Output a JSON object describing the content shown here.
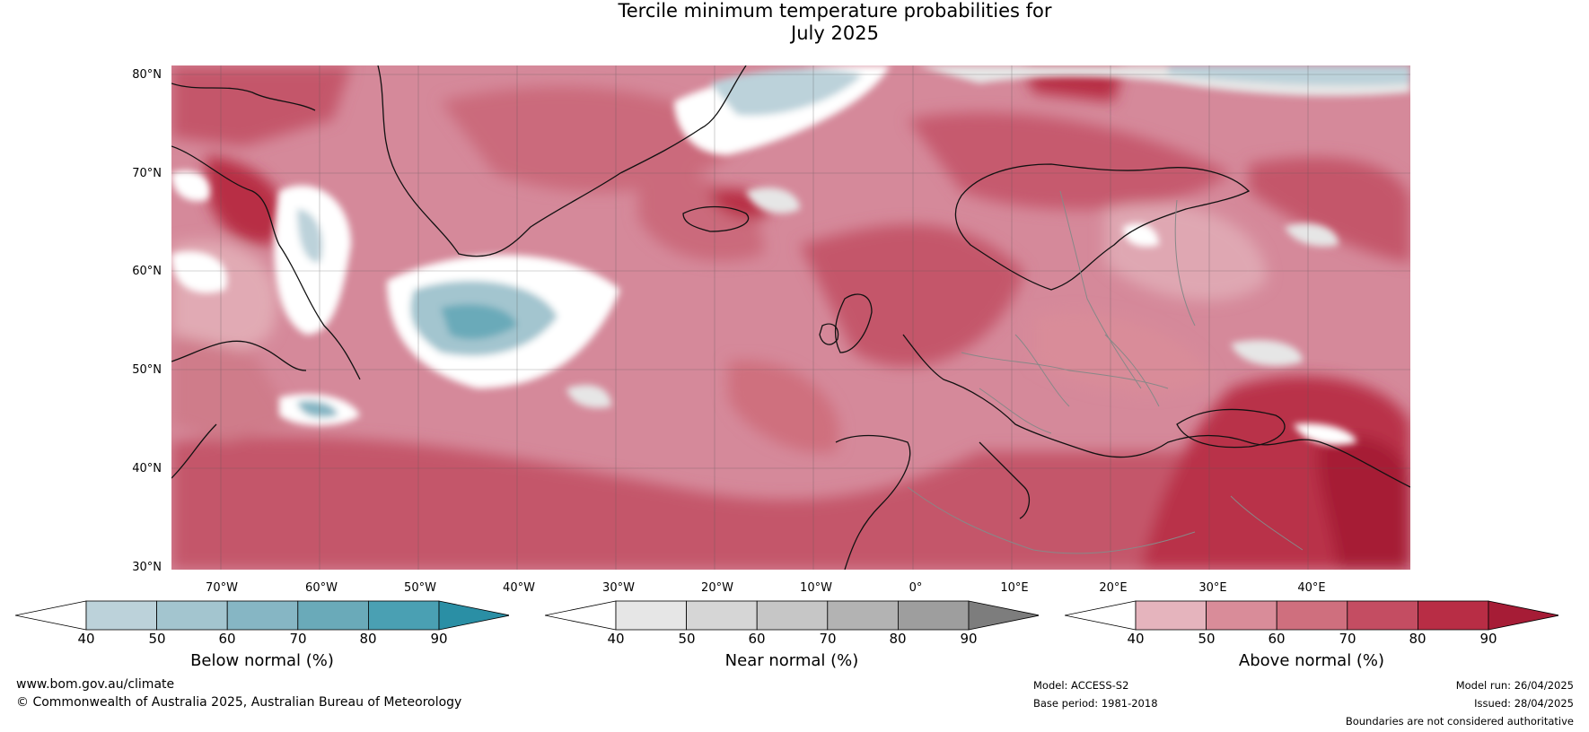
{
  "title": {
    "line1": "Tercile minimum temperature probabilities for",
    "line2": "July 2025"
  },
  "lat_labels": [
    "80°N",
    "70°N",
    "60°N",
    "50°N",
    "40°N",
    "30°N"
  ],
  "lon_labels": [
    "70°W",
    "60°W",
    "50°W",
    "40°W",
    "30°W",
    "20°W",
    "10°W",
    "0°",
    "10°E",
    "20°E",
    "30°E",
    "40°E"
  ],
  "colorbars": [
    {
      "label": "Below normal (%)",
      "ticks": [
        "40",
        "50",
        "60",
        "70",
        "80",
        "90"
      ],
      "colors": [
        "#ffffff",
        "#bcd2da",
        "#a3c5cf",
        "#86b6c4",
        "#6aaab9",
        "#4aa0b3",
        "#2a8fa5"
      ]
    },
    {
      "label": "Near normal (%)",
      "ticks": [
        "40",
        "50",
        "60",
        "70",
        "80",
        "90"
      ],
      "colors": [
        "#ffffff",
        "#e6e6e6",
        "#d6d6d6",
        "#c6c6c6",
        "#b3b3b3",
        "#9e9e9e",
        "#7d7d7d"
      ]
    },
    {
      "label": "Above normal (%)",
      "ticks": [
        "40",
        "50",
        "60",
        "70",
        "80",
        "90"
      ],
      "colors": [
        "#ffffff",
        "#e5b4bd",
        "#d98c99",
        "#cf6f7e",
        "#c44d62",
        "#b82d45",
        "#a61c36"
      ]
    }
  ],
  "footer": {
    "website": "www.bom.gov.au/climate",
    "copyright": "© Commonwealth of Australia 2025, Australian Bureau of Meteorology",
    "model": "Model: ACCESS-S2",
    "base_period": "Base period: 1981-2018",
    "model_run": "Model run: 26/04/2025",
    "issued": "Issued: 28/04/2025",
    "disclaimer": "Boundaries are not considered authoritative"
  }
}
